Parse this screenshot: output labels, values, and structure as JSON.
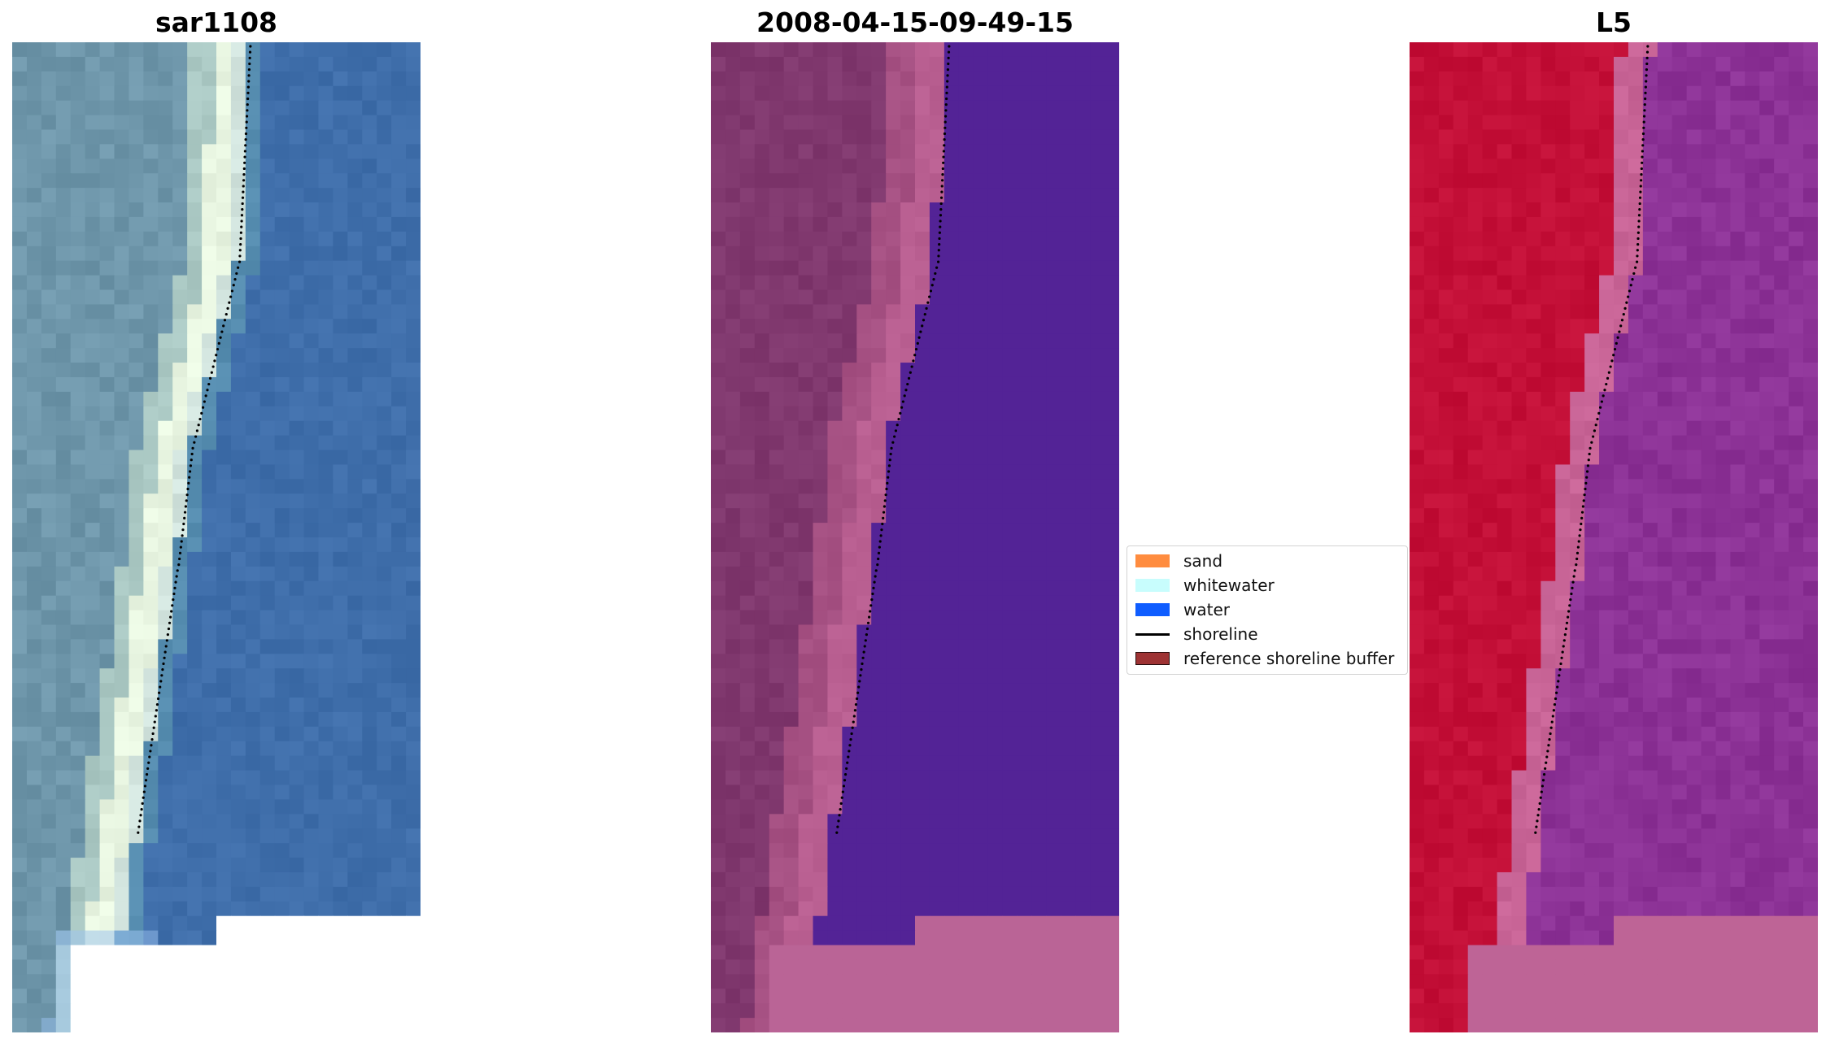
{
  "panels": [
    {
      "title": "sar1108",
      "palette": "rgb"
    },
    {
      "title": "2008-04-15-09-49-15",
      "palette": "classified"
    },
    {
      "title": "L5",
      "palette": "falsecolor"
    }
  ],
  "legend": {
    "items": [
      {
        "label": "sand",
        "color": "#ff8c3f",
        "kind": "patch"
      },
      {
        "label": "whitewater",
        "color": "#c8fdfd",
        "kind": "patch"
      },
      {
        "label": "water",
        "color": "#0f5dff",
        "kind": "patch"
      },
      {
        "label": "shoreline",
        "color": "#000000",
        "kind": "line"
      },
      {
        "label": "reference shoreline buffer",
        "color": "#9e3334",
        "kind": "patch-edged"
      }
    ]
  }
}
